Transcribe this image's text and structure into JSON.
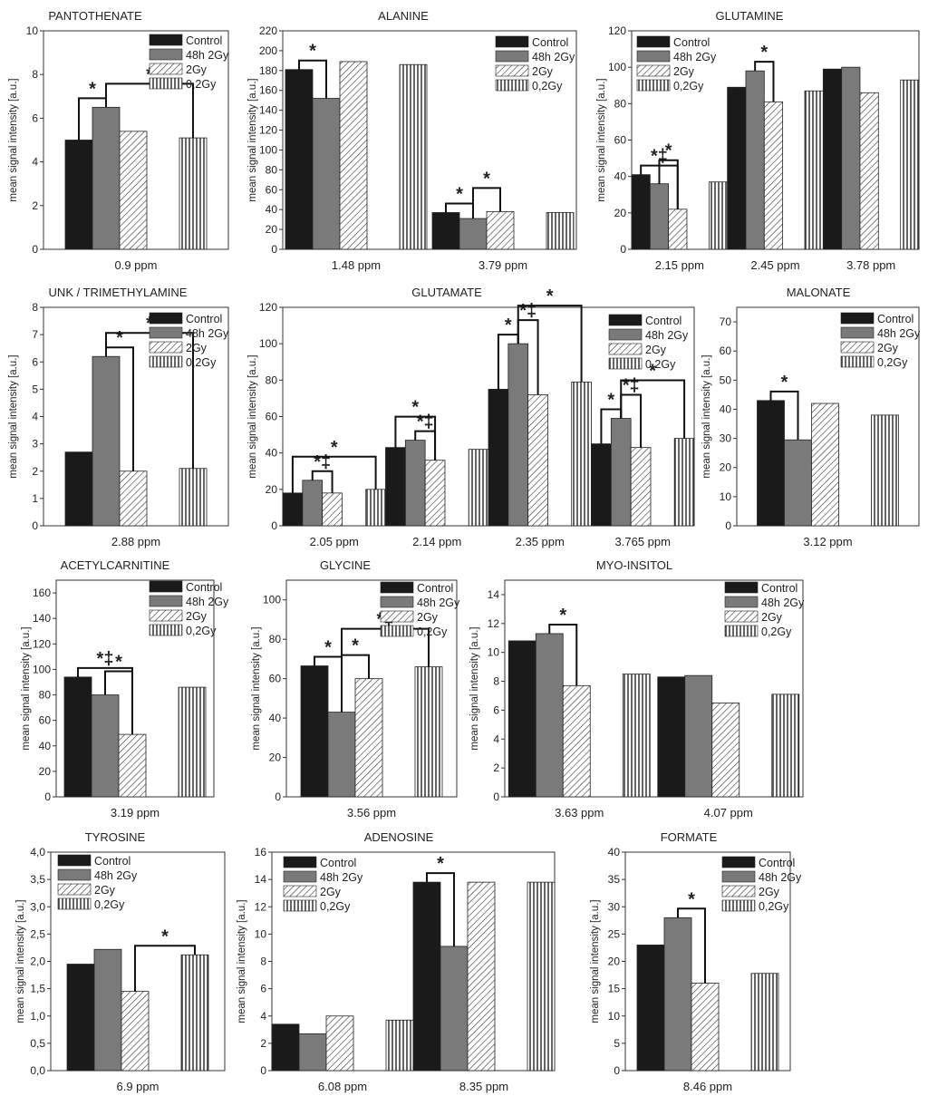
{
  "legend_labels": [
    "Control",
    "48h 2Gy",
    "2Gy",
    "0,2Gy"
  ],
  "ylabel": "mean signal intensity [a.u.]",
  "series_colors": [
    "#1a1a1a",
    "#7a7a7a",
    "hatch-diagonal",
    "hatch-vertical"
  ],
  "chart_data": [
    {
      "type": "bar",
      "title": "PANTOTHENATE",
      "categories": [
        "0.9 ppm"
      ],
      "ylim": [
        0,
        10
      ],
      "yticks": [
        "0",
        "2",
        "4",
        "6",
        "8",
        "10"
      ],
      "values": [
        [
          5.0,
          6.5,
          5.4,
          5.1
        ]
      ],
      "legend": "top-right",
      "annotations": [
        {
          "cat": 0,
          "a": 0,
          "b": 1,
          "label": "*"
        },
        {
          "cat": 0,
          "a": 1,
          "b": 3,
          "label": "*"
        }
      ]
    },
    {
      "type": "bar",
      "title": "ALANINE",
      "categories": [
        "1.48 ppm",
        "3.79 ppm"
      ],
      "ylim": [
        0,
        220
      ],
      "yticks": [
        "0",
        "20",
        "40",
        "60",
        "80",
        "100",
        "120",
        "140",
        "160",
        "180",
        "200",
        "220"
      ],
      "values": [
        [
          181,
          152,
          189,
          186
        ],
        [
          37,
          31,
          38,
          37
        ]
      ],
      "legend": "top-right",
      "annotations": [
        {
          "cat": 0,
          "a": 0,
          "b": 1,
          "label": "*"
        },
        {
          "cat": 1,
          "a": 0,
          "b": 1,
          "label": "*"
        },
        {
          "cat": 1,
          "a": 1,
          "b": 2,
          "label": "*"
        }
      ]
    },
    {
      "type": "bar",
      "title": "GLUTAMINE",
      "categories": [
        "2.15 ppm",
        "2.45 ppm",
        "3.78 ppm"
      ],
      "ylim": [
        0,
        120
      ],
      "yticks": [
        "0",
        "20",
        "40",
        "60",
        "80",
        "100",
        "120"
      ],
      "values": [
        [
          41,
          36,
          22,
          37
        ],
        [
          89,
          98,
          81,
          87
        ],
        [
          99,
          100,
          86,
          93
        ]
      ],
      "legend": "top-left",
      "annotations": [
        {
          "cat": 0,
          "a": 0,
          "b": 2,
          "label": "*‡"
        },
        {
          "cat": 0,
          "a": 1,
          "b": 2,
          "label": "*"
        },
        {
          "cat": 1,
          "a": 1,
          "b": 2,
          "label": "*"
        }
      ]
    },
    {
      "type": "bar",
      "title": "UNK / TRIMETHYLAMINE",
      "categories": [
        "2.88 ppm"
      ],
      "ylim": [
        0,
        8
      ],
      "yticks": [
        "0",
        "1",
        "2",
        "3",
        "4",
        "5",
        "6",
        "7",
        "8"
      ],
      "values": [
        [
          2.7,
          6.2,
          2.0,
          2.1
        ]
      ],
      "legend": "top-right",
      "annotations": [
        {
          "cat": 0,
          "a": 1,
          "b": 2,
          "label": "*"
        },
        {
          "cat": 0,
          "a": 1,
          "b": 3,
          "label": "*"
        }
      ]
    },
    {
      "type": "bar",
      "title": "GLUTAMATE",
      "categories": [
        "2.05 ppm",
        "2.14 ppm",
        "2.35 ppm",
        "3.765 ppm"
      ],
      "ylim": [
        0,
        120
      ],
      "yticks": [
        "0",
        "20",
        "40",
        "60",
        "80",
        "100",
        "120"
      ],
      "values": [
        [
          18,
          25,
          18,
          20
        ],
        [
          43,
          47,
          36,
          42
        ],
        [
          75,
          100,
          72,
          79
        ],
        [
          45,
          59,
          43,
          48
        ]
      ],
      "legend": "top-right",
      "annotations": [
        {
          "cat": 0,
          "a": 1,
          "b": 2,
          "label": "*‡"
        },
        {
          "cat": 0,
          "a": 0,
          "b": 3,
          "label": "*"
        },
        {
          "cat": 1,
          "a": 1,
          "b": 2,
          "label": "*‡"
        },
        {
          "cat": 1,
          "a": 0,
          "b": 2,
          "label": "*"
        },
        {
          "cat": 2,
          "a": 0,
          "b": 1,
          "label": "*"
        },
        {
          "cat": 2,
          "a": 1,
          "b": 2,
          "label": "*‡"
        },
        {
          "cat": 2,
          "a": 1,
          "b": 3,
          "label": "*"
        },
        {
          "cat": 3,
          "a": 0,
          "b": 1,
          "label": "*"
        },
        {
          "cat": 3,
          "a": 1,
          "b": 2,
          "label": "*‡"
        },
        {
          "cat": 3,
          "a": 1,
          "b": 3,
          "label": "*"
        }
      ]
    },
    {
      "type": "bar",
      "title": "MALONATE",
      "categories": [
        "3.12 ppm"
      ],
      "ylim": [
        0,
        75
      ],
      "yticks": [
        "0",
        "10",
        "20",
        "30",
        "40",
        "50",
        "60",
        "70"
      ],
      "values": [
        [
          43,
          29.5,
          42,
          38
        ]
      ],
      "legend": "top-right",
      "annotations": [
        {
          "cat": 0,
          "a": 0,
          "b": 1,
          "label": "*"
        }
      ]
    },
    {
      "type": "bar",
      "title": "ACETYLCARNITINE",
      "categories": [
        "3.19 ppm"
      ],
      "ylim": [
        0,
        170
      ],
      "yticks": [
        "0",
        "20",
        "40",
        "60",
        "80",
        "100",
        "120",
        "140",
        "160"
      ],
      "values": [
        [
          94,
          80,
          49,
          86
        ]
      ],
      "legend": "top-right",
      "annotations": [
        {
          "cat": 0,
          "a": 0,
          "b": 2,
          "label": "*‡"
        },
        {
          "cat": 0,
          "a": 1,
          "b": 2,
          "label": "*"
        }
      ]
    },
    {
      "type": "bar",
      "title": "GLYCINE",
      "categories": [
        "3.56 ppm"
      ],
      "ylim": [
        0,
        110
      ],
      "yticks": [
        "0",
        "20",
        "40",
        "60",
        "80",
        "100"
      ],
      "values": [
        [
          66.5,
          43,
          60,
          66
        ]
      ],
      "legend": "top-right",
      "annotations": [
        {
          "cat": 0,
          "a": 0,
          "b": 1,
          "label": "*"
        },
        {
          "cat": 0,
          "a": 1,
          "b": 2,
          "label": "*"
        },
        {
          "cat": 0,
          "a": 1,
          "b": 3,
          "label": "*‡"
        }
      ]
    },
    {
      "type": "bar",
      "title": "MYO-INSITOL",
      "categories": [
        "3.63 ppm",
        "4.07 ppm"
      ],
      "ylim": [
        0,
        15
      ],
      "yticks": [
        "0",
        "2",
        "4",
        "6",
        "8",
        "10",
        "12",
        "14"
      ],
      "values": [
        [
          10.8,
          11.3,
          7.7,
          8.5
        ],
        [
          8.3,
          8.4,
          6.5,
          7.1
        ]
      ],
      "legend": "top-right",
      "annotations": [
        {
          "cat": 0,
          "a": 1,
          "b": 2,
          "label": "*"
        }
      ]
    },
    {
      "type": "bar",
      "title": "TYROSINE",
      "categories": [
        "6.9 ppm"
      ],
      "ylim": [
        0,
        4
      ],
      "yticks": [
        "0,0",
        "0,5",
        "1,0",
        "1,5",
        "2,0",
        "2,5",
        "3,0",
        "3,5",
        "4,0"
      ],
      "values": [
        [
          1.95,
          2.22,
          1.45,
          2.12
        ]
      ],
      "legend": "top-left",
      "annotations": [
        {
          "cat": 0,
          "a": 2,
          "b": 3,
          "label": "*"
        }
      ]
    },
    {
      "type": "bar",
      "title": "ADENOSINE",
      "categories": [
        "6.08 ppm",
        "8.35 ppm"
      ],
      "ylim": [
        0,
        16
      ],
      "yticks": [
        "0",
        "2",
        "4",
        "6",
        "8",
        "10",
        "12",
        "14",
        "16"
      ],
      "values": [
        [
          3.4,
          2.7,
          4.0,
          3.7
        ],
        [
          13.8,
          9.1,
          13.8,
          13.8
        ]
      ],
      "legend": "top-left",
      "annotations": [
        {
          "cat": 1,
          "a": 0,
          "b": 1,
          "label": "*"
        }
      ]
    },
    {
      "type": "bar",
      "title": "FORMATE",
      "categories": [
        "8.46 ppm"
      ],
      "ylim": [
        0,
        40
      ],
      "yticks": [
        "0",
        "5",
        "10",
        "15",
        "20",
        "25",
        "30",
        "35",
        "40"
      ],
      "values": [
        [
          23,
          28,
          16,
          17.8
        ]
      ],
      "legend": "top-right",
      "annotations": [
        {
          "cat": 0,
          "a": 1,
          "b": 2,
          "label": "*"
        }
      ]
    }
  ]
}
